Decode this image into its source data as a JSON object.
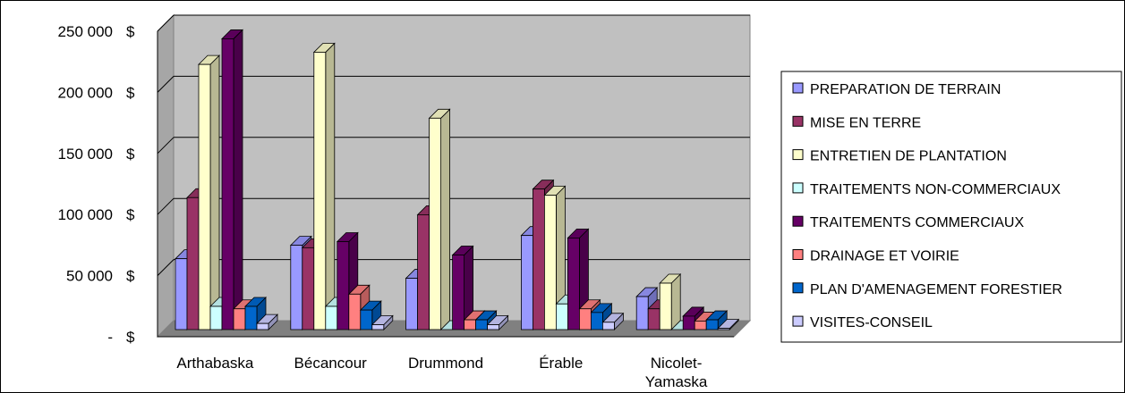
{
  "chart_data": {
    "type": "bar",
    "categories": [
      "Arthabaska",
      "Bécancour",
      "Drummond",
      "Érable",
      "Nicolet-Yamaska"
    ],
    "category_lines": [
      [
        "Arthabaska"
      ],
      [
        "Bécancour"
      ],
      [
        "Drummond"
      ],
      [
        "Érable"
      ],
      [
        "Nicolet-",
        "Yamaska"
      ]
    ],
    "ylim": [
      0,
      250000
    ],
    "y_ticks": [
      0,
      50000,
      100000,
      150000,
      200000,
      250000
    ],
    "y_tick_labels": [
      "-",
      "50 000",
      "100 000",
      "150 000",
      "200 000",
      "250 000"
    ],
    "y_unit": "$",
    "grid": true,
    "legend_position": "right",
    "series": [
      {
        "name": "PREPARATION DE TERRAIN",
        "color": "#9999FF",
        "values": [
          58000,
          69000,
          42000,
          77000,
          27000
        ]
      },
      {
        "name": "MISE EN TERRE",
        "color": "#993366",
        "values": [
          108000,
          67000,
          94000,
          115000,
          17000
        ]
      },
      {
        "name": "ENTRETIEN DE PLANTATION",
        "color": "#FFFFCC",
        "values": [
          217000,
          227000,
          173000,
          110000,
          38000
        ]
      },
      {
        "name": "TRAITEMENTS NON-COMMERCIAUX",
        "color": "#CCFFFF",
        "values": [
          19000,
          19000,
          0,
          21000,
          0
        ]
      },
      {
        "name": "TRAITEMENTS COMMERCIAUX",
        "color": "#660066",
        "values": [
          238000,
          72000,
          61000,
          75000,
          11000
        ]
      },
      {
        "name": "DRAINAGE ET VOIRIE",
        "color": "#FF8080",
        "values": [
          17000,
          29000,
          8000,
          17000,
          7000
        ]
      },
      {
        "name": "PLAN D'AMENAGEMENT FORESTIER",
        "color": "#0066CC",
        "values": [
          19000,
          16000,
          8000,
          14000,
          8000
        ]
      },
      {
        "name": "VISITES-CONSEIL",
        "color": "#CCCCFF",
        "values": [
          5000,
          4000,
          4000,
          6000,
          1000
        ]
      }
    ]
  }
}
